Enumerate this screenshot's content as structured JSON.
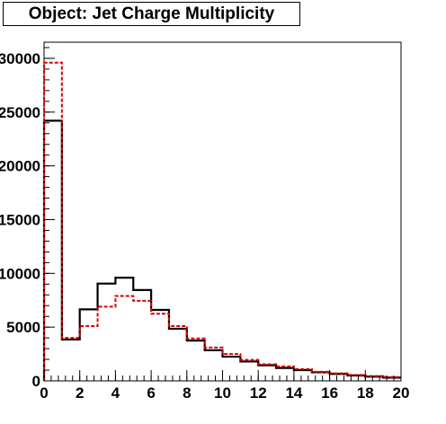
{
  "title": "Object: Jet Charge Multiplicity",
  "chart_data": {
    "type": "histogram",
    "title": "Object: Jet Charge Multiplicity",
    "xlabel": "",
    "ylabel": "",
    "xlim": [
      0,
      20
    ],
    "ylim": [
      0,
      31500
    ],
    "x_ticks": [
      0,
      2,
      4,
      6,
      8,
      10,
      12,
      14,
      16,
      18,
      20
    ],
    "y_ticks": [
      0,
      5000,
      10000,
      15000,
      20000,
      25000,
      30000
    ],
    "x_tick_labels": [
      "0",
      "2",
      "4",
      "6",
      "8",
      "10",
      "12",
      "14",
      "16",
      "18",
      "20"
    ],
    "y_tick_labels": [
      "0",
      "5000",
      "10000",
      "15000",
      "20000",
      "25000",
      "30000"
    ],
    "bin_edges": [
      0,
      1,
      2,
      3,
      4,
      5,
      6,
      7,
      8,
      9,
      10,
      11,
      12,
      13,
      14,
      15,
      16,
      17,
      18,
      19,
      20
    ],
    "series": [
      {
        "style": "solid",
        "color": "#000000",
        "values": [
          24200,
          3850,
          6650,
          9050,
          9600,
          8450,
          6600,
          4850,
          3750,
          2850,
          2250,
          1800,
          1450,
          1200,
          1000,
          800,
          650,
          500,
          400,
          300
        ]
      },
      {
        "style": "dashed",
        "color": "#dd0000",
        "values": [
          29600,
          4000,
          5100,
          6900,
          7900,
          7450,
          6250,
          5100,
          3950,
          3100,
          2500,
          1950,
          1550,
          1350,
          1100,
          850,
          700,
          550,
          450,
          350
        ]
      }
    ],
    "grid": false,
    "legend": "none"
  }
}
